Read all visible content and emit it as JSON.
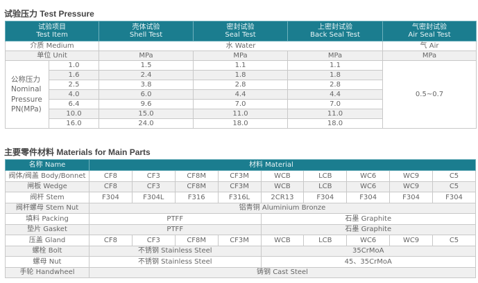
{
  "test_pressure": {
    "title": "试验压力 Test Pressure",
    "headers": [
      {
        "cn": "试验项目",
        "en": "Test Item"
      },
      {
        "cn": "壳体试验",
        "en": "Shell Test"
      },
      {
        "cn": "密封试验",
        "en": "Seal Test"
      },
      {
        "cn": "上密封试验",
        "en": "Back Seal Test"
      },
      {
        "cn": "气密封试验",
        "en": "Air Seal Test"
      }
    ],
    "medium_label": "介质 Medium",
    "medium_water": "水 Water",
    "medium_air": "气 Air",
    "unit_label": "单位 Unit",
    "unit": "MPa",
    "pn_label": [
      "公称压力",
      "Nominal",
      "Pressure",
      "PN(MPa)"
    ],
    "air_value": "0.5~0.7",
    "rows": [
      [
        "1.0",
        "1.5",
        "1.1",
        "1.1"
      ],
      [
        "1.6",
        "2.4",
        "1.8",
        "1.8"
      ],
      [
        "2.5",
        "3.8",
        "2.8",
        "2.8"
      ],
      [
        "4.0",
        "6.0",
        "4.4",
        "4.4"
      ],
      [
        "6.4",
        "9.6",
        "7.0",
        "7.0"
      ],
      [
        "10.0",
        "15.0",
        "11.0",
        "11.0"
      ],
      [
        "16.0",
        "24.0",
        "18.0",
        "18.0"
      ]
    ]
  },
  "materials": {
    "title": "主要零件材料  Materials for Main Parts",
    "header_name": "名称 Name",
    "header_material": "材料 Material",
    "body": {
      "label": "阀体/阀盖 Body/Bonnet",
      "values": [
        "CF8",
        "CF3",
        "CF8M",
        "CF3M",
        "WCB",
        "LCB",
        "WC6",
        "WC9",
        "C5"
      ]
    },
    "wedge": {
      "label": "闸板 Wedge",
      "values": [
        "CF8",
        "CF3",
        "CF8M",
        "CF3M",
        "WCB",
        "LCB",
        "WC6",
        "WC9",
        "C5"
      ]
    },
    "stem": {
      "label": "阀杆 Stem",
      "values": [
        "F304",
        "F304L",
        "F316",
        "F316L",
        "2CR13",
        "F304",
        "F304",
        "F304",
        "F304"
      ]
    },
    "stem_nut": {
      "label": "阀杆螺母 Stem Nut",
      "value": "铝青铜 Aluminium Bronze"
    },
    "packing": {
      "label": "填料 Packing",
      "a": "PTFF",
      "b": "石墨 Graphite"
    },
    "gasket": {
      "label": "垫片 Gasket",
      "a": "PTFF",
      "b": "石墨 Graphite"
    },
    "gland": {
      "label": "压盖 Gland",
      "values": [
        "CF8",
        "CF3",
        "CF8M",
        "CF3M",
        "WCB",
        "LCB",
        "WC6",
        "WC9",
        "C5"
      ]
    },
    "bolt": {
      "label": "螺栓 Bolt",
      "a": "不锈钢 Stainless Steel",
      "b": "35CrMoA"
    },
    "nut": {
      "label": "螺母 Nut",
      "a": "不锈钢 Stainless Steel",
      "b": "45、35CrMoA"
    },
    "handwheel": {
      "label": "手轮 Handwheel",
      "value": "铸钢 Cast Steel"
    }
  },
  "colors": {
    "header": "#1b7d8f",
    "stripe": "#f0f0f0"
  }
}
